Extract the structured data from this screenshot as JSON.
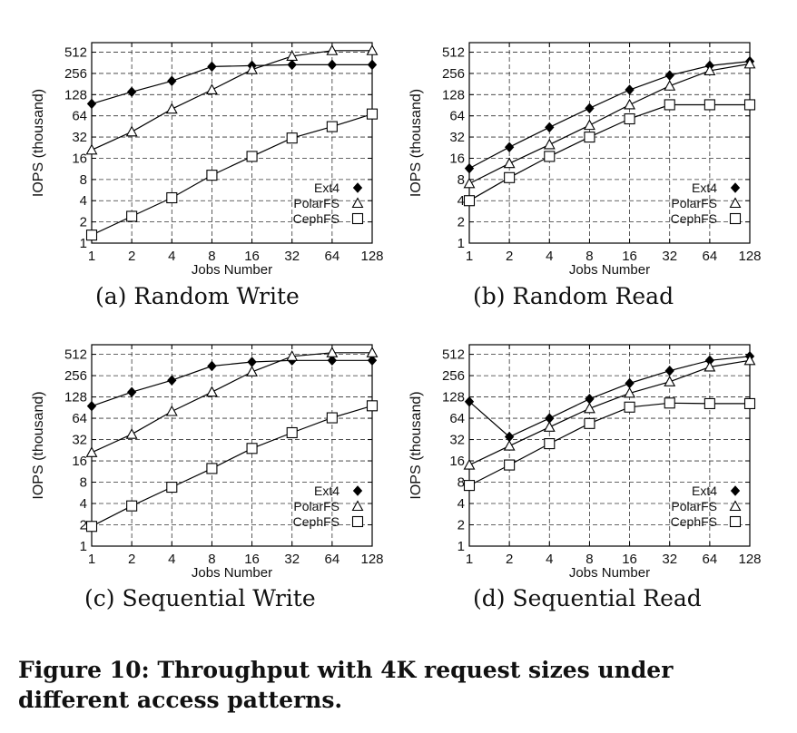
{
  "figure": {
    "caption": "Figure 10: Throughput with 4K request sizes under different access patterns."
  },
  "chart_data": [
    {
      "type": "line",
      "subcaption": "(a) Random Write",
      "xlabel": "Jobs Number",
      "ylabel": "IOPS (thousand)",
      "x_scale": "log2",
      "y_scale": "log2",
      "x": [
        1,
        2,
        4,
        8,
        16,
        32,
        64,
        128
      ],
      "y_ticks": [
        1,
        2,
        4,
        8,
        16,
        32,
        64,
        128,
        256,
        512
      ],
      "ylim": [
        1,
        700
      ],
      "grid": true,
      "legend_position": "bottom-right",
      "series": [
        {
          "name": "Ext4",
          "marker": "filled-diamond",
          "values": [
            95,
            140,
            200,
            320,
            330,
            340,
            340,
            340
          ]
        },
        {
          "name": "PolarFS",
          "marker": "triangle",
          "values": [
            21,
            38,
            80,
            150,
            290,
            450,
            540,
            540
          ]
        },
        {
          "name": "CephFS",
          "marker": "square",
          "values": [
            1.3,
            2.4,
            4.4,
            9.2,
            17,
            31,
            45,
            68
          ]
        }
      ]
    },
    {
      "type": "line",
      "subcaption": "(b) Random Read",
      "xlabel": "Jobs Number",
      "ylabel": "IOPS (thousand)",
      "x_scale": "log2",
      "y_scale": "log2",
      "x": [
        1,
        2,
        4,
        8,
        16,
        32,
        64,
        128
      ],
      "y_ticks": [
        1,
        2,
        4,
        8,
        16,
        32,
        64,
        128,
        256,
        512
      ],
      "ylim": [
        1,
        700
      ],
      "grid": true,
      "legend_position": "bottom-right",
      "series": [
        {
          "name": "Ext4",
          "marker": "filled-diamond",
          "values": [
            11.5,
            23,
            44,
            82,
            150,
            240,
            330,
            380
          ]
        },
        {
          "name": "PolarFS",
          "marker": "triangle",
          "values": [
            7,
            13.5,
            25,
            47,
            92,
            170,
            280,
            350
          ]
        },
        {
          "name": "CephFS",
          "marker": "square",
          "values": [
            4,
            8.5,
            17,
            32,
            58,
            92,
            92,
            92
          ]
        }
      ]
    },
    {
      "type": "line",
      "subcaption": "(c) Sequential Write",
      "xlabel": "Jobs Number",
      "ylabel": "IOPS (thousand)",
      "x_scale": "log2",
      "y_scale": "log2",
      "x": [
        1,
        2,
        4,
        8,
        16,
        32,
        64,
        128
      ],
      "y_ticks": [
        1,
        2,
        4,
        8,
        16,
        32,
        64,
        128,
        256,
        512
      ],
      "ylim": [
        1,
        700
      ],
      "grid": true,
      "legend_position": "bottom-right",
      "series": [
        {
          "name": "Ext4",
          "marker": "filled-diamond",
          "values": [
            95,
            150,
            220,
            350,
            400,
            420,
            420,
            420
          ]
        },
        {
          "name": "PolarFS",
          "marker": "triangle",
          "values": [
            21,
            38,
            80,
            150,
            290,
            480,
            540,
            540
          ]
        },
        {
          "name": "CephFS",
          "marker": "square",
          "values": [
            1.9,
            3.7,
            6.8,
            12.5,
            24,
            40,
            65,
            96
          ]
        }
      ]
    },
    {
      "type": "line",
      "subcaption": "(d) Sequential Read",
      "xlabel": "Jobs Number",
      "ylabel": "IOPS (thousand)",
      "x_scale": "log2",
      "y_scale": "log2",
      "x": [
        1,
        2,
        4,
        8,
        16,
        32,
        64,
        128
      ],
      "y_ticks": [
        1,
        2,
        4,
        8,
        16,
        32,
        64,
        128,
        256,
        512
      ],
      "ylim": [
        1,
        700
      ],
      "grid": true,
      "legend_position": "bottom-right",
      "series": [
        {
          "name": "Ext4",
          "marker": "filled-diamond",
          "values": [
            110,
            35,
            64,
            120,
            200,
            300,
            420,
            480
          ]
        },
        {
          "name": "PolarFS",
          "marker": "triangle",
          "values": [
            14,
            26,
            48,
            88,
            145,
            210,
            340,
            420
          ]
        },
        {
          "name": "CephFS",
          "marker": "square",
          "values": [
            7.2,
            14,
            28,
            54,
            92,
            105,
            103,
            103
          ]
        }
      ]
    }
  ]
}
